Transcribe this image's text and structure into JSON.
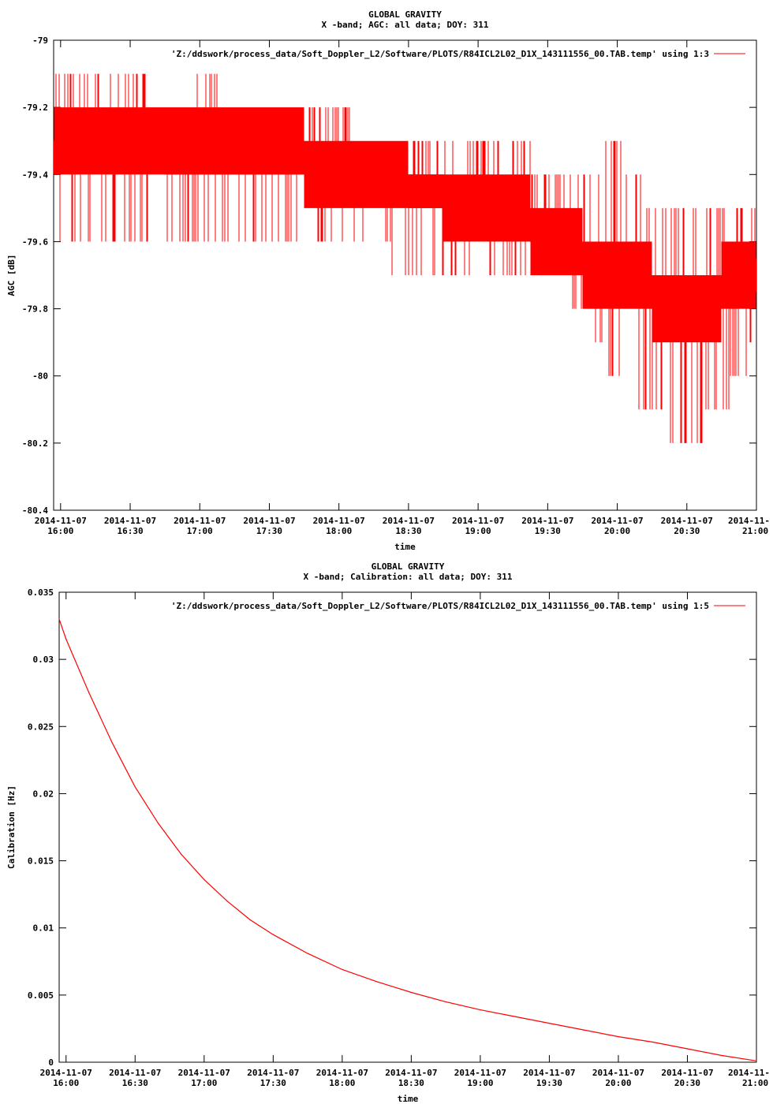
{
  "chart_data": [
    {
      "type": "line",
      "title": "GLOBAL GRAVITY",
      "subtitle": "X -band; AGC: all data; DOY: 311",
      "xlabel": "time",
      "ylabel": "AGC [dB]",
      "legend": "'Z:/ddswork/process_data/Soft_Doppler_L2/Software/PLOTS/R84ICL2L02_D1X_143111556_00.TAB.temp' using 1:3",
      "legend_position": "top-right",
      "color": "#ff0000",
      "grid": false,
      "xlim": [
        "2014-11-07 15:57",
        "2014-11-07 21:00"
      ],
      "ylim": [
        -80.4,
        -79.0
      ],
      "yticks": [
        "-79",
        "-79.2",
        "-79.4",
        "-79.6",
        "-79.8",
        "-80",
        "-80.2",
        "-80.4"
      ],
      "xticks": [
        {
          "date": "2014-11-07",
          "time": "16:00"
        },
        {
          "date": "2014-11-07",
          "time": "16:30"
        },
        {
          "date": "2014-11-07",
          "time": "17:00"
        },
        {
          "date": "2014-11-07",
          "time": "17:30"
        },
        {
          "date": "2014-11-07",
          "time": "18:00"
        },
        {
          "date": "2014-11-07",
          "time": "18:30"
        },
        {
          "date": "2014-11-07",
          "time": "19:00"
        },
        {
          "date": "2014-11-07",
          "time": "19:30"
        },
        {
          "date": "2014-11-07",
          "time": "20:00"
        },
        {
          "date": "2014-11-07",
          "time": "20:30"
        },
        {
          "date": "2014-11-",
          "time": "21:00"
        }
      ],
      "series": [
        {
          "x": [
            "15:57",
            "16:00",
            "16:10",
            "16:20",
            "16:30",
            "16:45",
            "17:00",
            "17:15",
            "17:30",
            "17:45",
            "18:00",
            "18:15",
            "18:30",
            "18:45",
            "19:00",
            "19:15",
            "19:30",
            "19:45",
            "20:00",
            "20:15",
            "20:30",
            "20:45",
            "21:00"
          ],
          "band_high": [
            -79.1,
            -79.1,
            -79.1,
            -79.1,
            -79.1,
            -79.2,
            -79.1,
            -79.2,
            -79.2,
            -79.2,
            -79.2,
            -79.3,
            -79.3,
            -79.3,
            -79.3,
            -79.3,
            -79.4,
            -79.4,
            -79.3,
            -79.5,
            -79.5,
            -79.5,
            -79.5
          ],
          "band_low": [
            -79.5,
            -79.6,
            -79.6,
            -79.6,
            -79.6,
            -79.6,
            -79.6,
            -79.6,
            -79.6,
            -79.6,
            -79.6,
            -79.6,
            -79.7,
            -79.7,
            -79.7,
            -79.7,
            -79.7,
            -79.8,
            -80.0,
            -80.1,
            -80.2,
            -80.1,
            -79.9
          ],
          "mean": [
            -79.35,
            -79.3,
            -79.3,
            -79.3,
            -79.3,
            -79.35,
            -79.35,
            -79.35,
            -79.35,
            -79.35,
            -79.4,
            -79.4,
            -79.45,
            -79.45,
            -79.5,
            -79.5,
            -79.6,
            -79.65,
            -79.7,
            -79.75,
            -79.8,
            -79.75,
            -79.7
          ]
        }
      ]
    },
    {
      "type": "line",
      "title": "GLOBAL GRAVITY",
      "subtitle": "X -band; Calibration: all data; DOY: 311",
      "xlabel": "time",
      "ylabel": "Calibration [Hz]",
      "legend": "'Z:/ddswork/process_data/Soft_Doppler_L2/Software/PLOTS/R84ICL2L02_D1X_143111556_00.TAB.temp' using 1:5",
      "legend_position": "top-right",
      "color": "#ff0000",
      "grid": false,
      "xlim": [
        "2014-11-07 15:57",
        "2014-11-07 21:00"
      ],
      "ylim": [
        0,
        0.035
      ],
      "yticks": [
        "0.035",
        "0.03",
        "0.025",
        "0.02",
        "0.015",
        "0.01",
        "0.005",
        "0"
      ],
      "xticks": [
        {
          "date": "2014-11-07",
          "time": "16:00"
        },
        {
          "date": "2014-11-07",
          "time": "16:30"
        },
        {
          "date": "2014-11-07",
          "time": "17:00"
        },
        {
          "date": "2014-11-07",
          "time": "17:30"
        },
        {
          "date": "2014-11-07",
          "time": "18:00"
        },
        {
          "date": "2014-11-07",
          "time": "18:30"
        },
        {
          "date": "2014-11-07",
          "time": "19:00"
        },
        {
          "date": "2014-11-07",
          "time": "19:30"
        },
        {
          "date": "2014-11-07",
          "time": "20:00"
        },
        {
          "date": "2014-11-07",
          "time": "20:30"
        },
        {
          "date": "2014-11-",
          "time": "21:00"
        }
      ],
      "series": [
        {
          "x": [
            "15:57",
            "16:00",
            "16:10",
            "16:20",
            "16:30",
            "16:40",
            "16:50",
            "17:00",
            "17:10",
            "17:20",
            "17:30",
            "17:45",
            "18:00",
            "18:15",
            "18:30",
            "18:45",
            "19:00",
            "19:15",
            "19:30",
            "19:45",
            "20:00",
            "20:15",
            "20:30",
            "20:45",
            "21:00"
          ],
          "y": [
            0.033,
            0.0315,
            0.0275,
            0.0238,
            0.0205,
            0.0178,
            0.0155,
            0.0136,
            0.012,
            0.0106,
            0.0095,
            0.0081,
            0.0069,
            0.006,
            0.0052,
            0.0045,
            0.0039,
            0.0034,
            0.0029,
            0.0024,
            0.0019,
            0.0015,
            0.001,
            0.0005,
            0.0001
          ]
        }
      ]
    }
  ]
}
